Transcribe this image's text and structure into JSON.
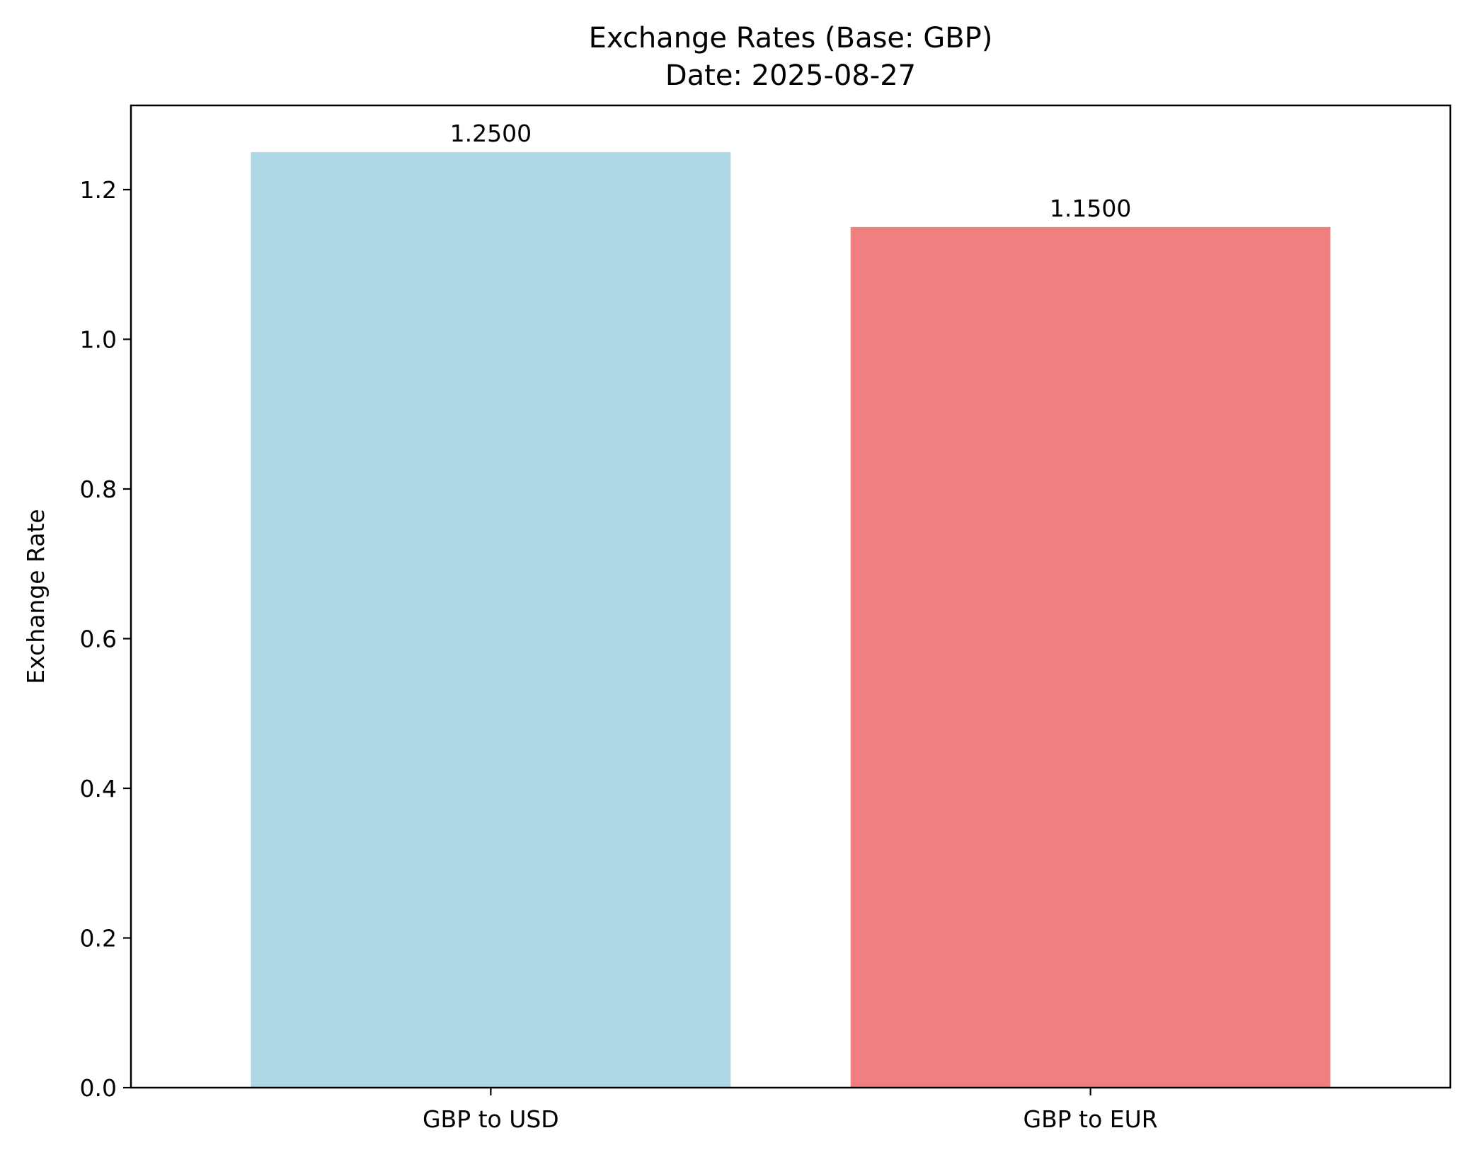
{
  "chart_data": {
    "type": "bar",
    "title": "Exchange Rates (Base: GBP)",
    "subtitle": "Date: 2025-08-27",
    "xlabel": "",
    "ylabel": "Exchange Rate",
    "categories": [
      "GBP to USD",
      "GBP to EUR"
    ],
    "values": [
      1.25,
      1.15
    ],
    "value_labels": [
      "1.2500",
      "1.1500"
    ],
    "colors": [
      "#add8e6",
      "#f08080"
    ],
    "ylim": [
      0,
      1.3125
    ],
    "yticks": [
      0.0,
      0.2,
      0.4,
      0.6,
      0.8,
      1.0,
      1.2
    ],
    "ytick_labels": [
      "0.0",
      "0.2",
      "0.4",
      "0.6",
      "0.8",
      "1.0",
      "1.2"
    ],
    "grid": false,
    "legend": "none"
  }
}
